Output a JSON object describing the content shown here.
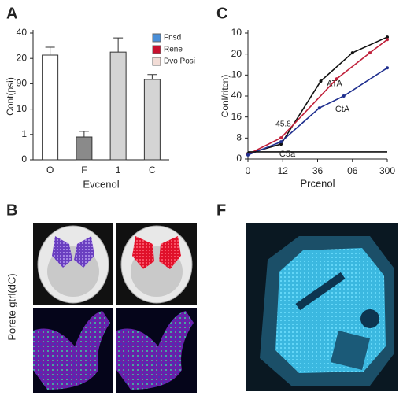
{
  "chart_data": [
    {
      "type": "bar",
      "panel_label": "A",
      "ylabel": "Cont(psi)",
      "xlabel": "Evcenol",
      "categories": [
        "O",
        "F",
        "1",
        "C"
      ],
      "values": [
        4.13,
        0.9,
        4.25,
        3.17
      ],
      "errors": [
        0.31,
        0.22,
        0.56,
        0.19
      ],
      "colors": [
        "#ffffff",
        "#8a8a8a",
        "#d4d4d4",
        "#d4d4d4"
      ],
      "ylim": [
        0,
        5
      ],
      "yticks": [
        0,
        1,
        {
          "value": 2,
          "label": "10"
        },
        {
          "value": 3,
          "label": "90"
        },
        {
          "value": 4,
          "label": "20"
        },
        {
          "value": 5,
          "label": "40"
        }
      ],
      "legend": [
        {
          "name": "Fnsd",
          "color": "#4a8fd8"
        },
        {
          "name": "Rene",
          "color": "#c8102e"
        },
        {
          "name": "Dvo Posi",
          "color": "#f2dcd6"
        }
      ],
      "legend_position": "upper right"
    },
    {
      "type": "line",
      "panel_label": "C",
      "ylabel": "Conl/ritcn)",
      "xlabel": "Prcenol",
      "xlim": [
        0,
        4
      ],
      "xticks": [
        0,
        {
          "value": 1,
          "label": "12"
        },
        {
          "value": 2,
          "label": "36"
        },
        {
          "value": 3,
          "label": "06"
        },
        {
          "value": 4,
          "label": "300"
        }
      ],
      "ylim": [
        0,
        6
      ],
      "yticks": [
        0,
        {
          "value": 1,
          "label": "8"
        },
        {
          "value": 2,
          "label": "16"
        },
        {
          "value": 3,
          "label": "40"
        },
        {
          "value": 4,
          "label": "10"
        },
        {
          "value": 5,
          "label": "20"
        },
        {
          "value": 6,
          "label": "10"
        }
      ],
      "series": [
        {
          "name": "ATA",
          "color": "#111111",
          "x": [
            0,
            0.95,
            2.09,
            3.0,
            4.0
          ],
          "values": [
            0.26,
            0.71,
            3.71,
            5.06,
            5.81
          ]
        },
        {
          "color": "#c0203a",
          "x": [
            0,
            0.95,
            2.55,
            3.5,
            4.0
          ],
          "values": [
            0.22,
            1.01,
            3.82,
            5.06,
            5.69
          ]
        },
        {
          "name": "CtA",
          "color": "#1f2f8f",
          "x": [
            0,
            0.95,
            2.05,
            2.75,
            4.0
          ],
          "values": [
            0.19,
            0.82,
            2.43,
            3.0,
            4.34
          ]
        },
        {
          "name": "C5a",
          "color": "#111111",
          "x": [
            0,
            4.0
          ],
          "values": [
            0.34,
            0.34
          ]
        }
      ],
      "annotations": [
        "45.8"
      ]
    }
  ],
  "figure_panels": [
    {
      "label": "B",
      "ylabel": "Porete gtrl(dC)"
    },
    {
      "label": "F"
    }
  ]
}
